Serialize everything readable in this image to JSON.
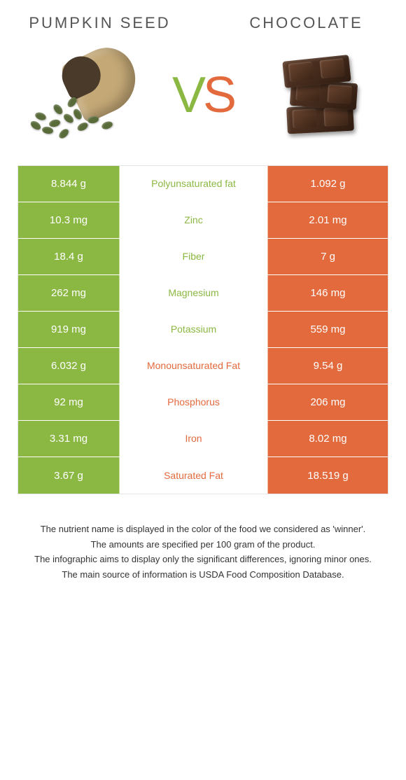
{
  "colors": {
    "left": "#8bb843",
    "right": "#e36a3d",
    "mid_bg": "#ffffff",
    "cell_text": "#ffffff"
  },
  "header": {
    "left_title": "Pumpkin Seed",
    "right_title": "Chocolate",
    "vs_v": "V",
    "vs_s": "S"
  },
  "rows": [
    {
      "left": "8.844 g",
      "label": "Polyunsaturated fat",
      "right": "1.092 g",
      "winner": "left"
    },
    {
      "left": "10.3 mg",
      "label": "Zinc",
      "right": "2.01 mg",
      "winner": "left"
    },
    {
      "left": "18.4 g",
      "label": "Fiber",
      "right": "7 g",
      "winner": "left"
    },
    {
      "left": "262 mg",
      "label": "Magnesium",
      "right": "146 mg",
      "winner": "left"
    },
    {
      "left": "919 mg",
      "label": "Potassium",
      "right": "559 mg",
      "winner": "left"
    },
    {
      "left": "6.032 g",
      "label": "Monounsaturated Fat",
      "right": "9.54 g",
      "winner": "right"
    },
    {
      "left": "92 mg",
      "label": "Phosphorus",
      "right": "206 mg",
      "winner": "right"
    },
    {
      "left": "3.31 mg",
      "label": "Iron",
      "right": "8.02 mg",
      "winner": "right"
    },
    {
      "left": "3.67 g",
      "label": "Saturated Fat",
      "right": "18.519 g",
      "winner": "right"
    }
  ],
  "footer": {
    "line1": "The nutrient name is displayed in the color of the food we considered as 'winner'.",
    "line2": "The amounts are specified per 100 gram of the product.",
    "line3": "The infographic aims to display only the significant differences, ignoring minor ones.",
    "line4": "The main source of information is USDA Food Composition Database."
  }
}
